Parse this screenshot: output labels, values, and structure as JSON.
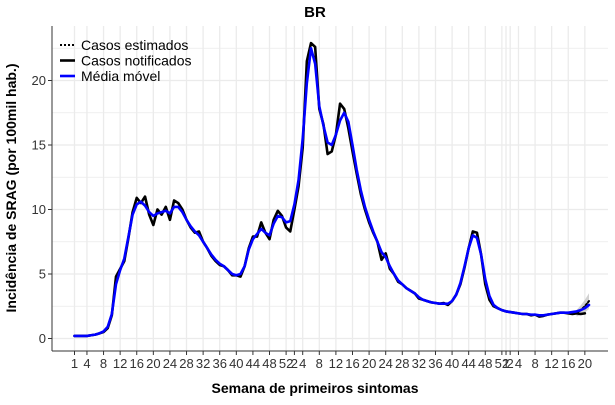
{
  "chart_data": {
    "type": "line",
    "title": "BR",
    "xlabel": "Semana de primeiros sintomas",
    "ylabel": "Incidência de SRAG (por 100mil hab.)",
    "ylim": [
      0,
      23.5
    ],
    "yticks": [
      0,
      5,
      10,
      15,
      20
    ],
    "grid": true,
    "legend_position": "top-left",
    "x_tick_labels": [
      "1",
      "4",
      "8",
      "12",
      "16",
      "20",
      "24",
      "28",
      "32",
      "36",
      "40",
      "44",
      "48",
      "52",
      "2",
      "4",
      "8",
      "12",
      "16",
      "20",
      "24",
      "28",
      "32",
      "36",
      "40",
      "44",
      "48",
      "52",
      "1",
      "2",
      "4",
      "8",
      "12",
      "16",
      "20"
    ],
    "colors": {
      "estimated": "#000000",
      "notified": "#000000",
      "moving_average": "#0000ff",
      "band": "#bdbdbd",
      "grid": "#ebebeb"
    },
    "series": [
      {
        "name": "Casos estimados",
        "style": "dotted",
        "x": [
          122,
          123,
          124,
          125
        ],
        "y": [
          1.95,
          2.2,
          2.5,
          2.9
        ]
      },
      {
        "name": "Casos notificados",
        "style": "solid",
        "x": [
          1,
          2,
          3,
          4,
          5,
          6,
          7,
          8,
          9,
          10,
          11,
          12,
          13,
          14,
          15,
          16,
          17,
          18,
          19,
          20,
          21,
          22,
          23,
          24,
          25,
          26,
          27,
          28,
          29,
          30,
          31,
          32,
          33,
          34,
          35,
          36,
          37,
          38,
          39,
          40,
          41,
          42,
          43,
          44,
          45,
          46,
          47,
          48,
          49,
          50,
          51,
          52,
          53,
          54,
          55,
          56,
          57,
          58,
          59,
          60,
          61,
          62,
          63,
          64,
          65,
          66,
          67,
          68,
          69,
          70,
          71,
          72,
          73,
          74,
          75,
          76,
          77,
          78,
          79,
          80,
          81,
          82,
          83,
          84,
          85,
          86,
          87,
          88,
          89,
          90,
          91,
          92,
          93,
          94,
          95,
          96,
          97,
          98,
          99,
          100,
          101,
          102,
          103,
          104,
          105,
          106,
          107,
          108,
          109,
          110,
          111,
          112,
          113,
          114,
          115,
          116,
          117,
          118,
          119,
          120,
          121,
          122,
          123,
          124
        ],
        "y": [
          0.2,
          0.2,
          0.2,
          0.2,
          0.25,
          0.3,
          0.4,
          0.5,
          0.8,
          1.8,
          4.8,
          5.4,
          6.0,
          7.8,
          9.8,
          10.9,
          10.5,
          11.0,
          9.6,
          8.8,
          10.0,
          9.6,
          10.2,
          9.2,
          10.7,
          10.5,
          10.0,
          9.2,
          8.6,
          8.2,
          8.3,
          7.5,
          7.0,
          6.4,
          6.0,
          5.7,
          5.6,
          5.3,
          4.9,
          4.9,
          4.8,
          5.6,
          7.0,
          7.9,
          7.9,
          9.0,
          8.2,
          7.7,
          9.2,
          9.9,
          9.5,
          8.6,
          8.3,
          10.0,
          11.8,
          14.8,
          21.5,
          22.9,
          22.6,
          17.8,
          16.6,
          14.3,
          14.5,
          15.8,
          18.2,
          17.8,
          16.3,
          14.5,
          12.8,
          11.2,
          10.0,
          9.0,
          8.2,
          7.5,
          6.1,
          6.6,
          5.4,
          5.0,
          4.4,
          4.2,
          3.9,
          3.7,
          3.5,
          3.1,
          3.0,
          2.9,
          2.8,
          2.75,
          2.7,
          2.75,
          2.6,
          2.9,
          3.4,
          4.2,
          5.5,
          7.0,
          8.3,
          8.2,
          6.5,
          4.2,
          3.0,
          2.5,
          2.35,
          2.2,
          2.1,
          2.05,
          2.0,
          1.95,
          1.9,
          1.9,
          1.8,
          1.85,
          1.7,
          1.75,
          1.85,
          1.9,
          1.95,
          2.0,
          2.0,
          1.95,
          1.9,
          1.95,
          1.9,
          1.95
        ]
      },
      {
        "name": "Média móvel",
        "style": "solid",
        "x": [
          1,
          2,
          3,
          4,
          5,
          6,
          7,
          8,
          9,
          10,
          11,
          12,
          13,
          14,
          15,
          16,
          17,
          18,
          19,
          20,
          21,
          22,
          23,
          24,
          25,
          26,
          27,
          28,
          29,
          30,
          31,
          32,
          33,
          34,
          35,
          36,
          37,
          38,
          39,
          40,
          41,
          42,
          43,
          44,
          45,
          46,
          47,
          48,
          49,
          50,
          51,
          52,
          53,
          54,
          55,
          56,
          57,
          58,
          59,
          60,
          61,
          62,
          63,
          64,
          65,
          66,
          67,
          68,
          69,
          70,
          71,
          72,
          73,
          74,
          75,
          76,
          77,
          78,
          79,
          80,
          81,
          82,
          83,
          84,
          85,
          86,
          87,
          88,
          89,
          90,
          91,
          92,
          93,
          94,
          95,
          96,
          97,
          98,
          99,
          100,
          101,
          102,
          103,
          104,
          105,
          106,
          107,
          108,
          109,
          110,
          111,
          112,
          113,
          114,
          115,
          116,
          117,
          118,
          119,
          120,
          121,
          122,
          123,
          124,
          125
        ],
        "y": [
          0.2,
          0.2,
          0.2,
          0.2,
          0.25,
          0.3,
          0.4,
          0.55,
          0.9,
          1.9,
          4.2,
          5.3,
          6.2,
          7.9,
          9.6,
          10.4,
          10.6,
          10.3,
          9.8,
          9.5,
          9.7,
          9.8,
          9.9,
          9.7,
          10.2,
          10.2,
          9.8,
          9.2,
          8.7,
          8.3,
          8.0,
          7.5,
          7.0,
          6.5,
          6.1,
          5.8,
          5.6,
          5.3,
          5.0,
          4.9,
          5.0,
          5.6,
          6.9,
          7.7,
          8.1,
          8.5,
          8.2,
          8.0,
          8.9,
          9.5,
          9.4,
          9.0,
          9.1,
          10.4,
          12.3,
          15.5,
          19.8,
          22.5,
          21.3,
          18.0,
          16.5,
          15.2,
          15.0,
          15.8,
          16.9,
          17.5,
          16.8,
          15.0,
          13.1,
          11.5,
          10.2,
          9.2,
          8.3,
          7.5,
          6.7,
          6.3,
          5.6,
          5.0,
          4.5,
          4.2,
          3.9,
          3.7,
          3.5,
          3.2,
          3.0,
          2.9,
          2.8,
          2.75,
          2.7,
          2.7,
          2.7,
          2.9,
          3.4,
          4.3,
          5.6,
          7.0,
          8.0,
          7.8,
          6.5,
          4.6,
          3.3,
          2.6,
          2.35,
          2.2,
          2.1,
          2.05,
          2.0,
          1.95,
          1.9,
          1.9,
          1.85,
          1.85,
          1.8,
          1.8,
          1.85,
          1.9,
          1.95,
          2.0,
          2.0,
          2.0,
          2.05,
          2.1,
          2.2,
          2.35,
          2.6
        ]
      }
    ]
  }
}
